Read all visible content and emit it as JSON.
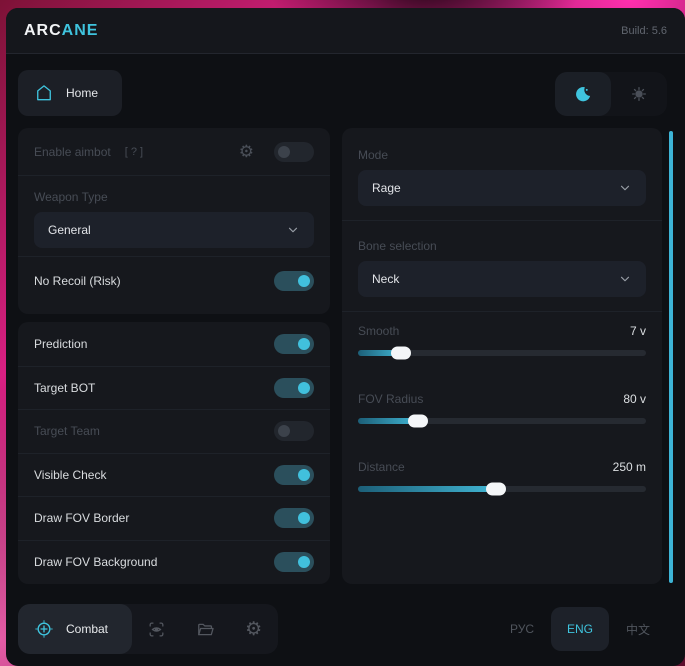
{
  "colors": {
    "accent": "#3fc4de",
    "panel": "#16181d",
    "window": "#0e1014"
  },
  "header": {
    "brand_prefix": "ARC",
    "brand_suffix": "ANE",
    "build": "Build: 5.6"
  },
  "nav": {
    "home_label": "Home"
  },
  "aimbot_panel": {
    "enable_label": "Enable aimbot",
    "enable_hint": "[ ? ]",
    "enable_on": false,
    "weapon_type_label": "Weapon Type",
    "weapon_type_value": "General",
    "no_recoil": {
      "label": "No Recoil (Risk)",
      "on": true
    },
    "toggles": [
      {
        "label": "Prediction",
        "on": true,
        "disabled": false
      },
      {
        "label": "Target BOT",
        "on": true,
        "disabled": false
      },
      {
        "label": "Target Team",
        "on": false,
        "disabled": true
      },
      {
        "label": "Visible Check",
        "on": true,
        "disabled": false
      },
      {
        "label": "Draw FOV Border",
        "on": true,
        "disabled": false
      },
      {
        "label": "Draw FOV Background",
        "on": true,
        "disabled": false
      }
    ]
  },
  "settings_panel": {
    "mode_label": "Mode",
    "mode_value": "Rage",
    "bone_label": "Bone selection",
    "bone_value": "Neck",
    "sliders": [
      {
        "label": "Smooth",
        "value": "7 v",
        "percent": 15
      },
      {
        "label": "FOV Radius",
        "value": "80 v",
        "percent": 21
      },
      {
        "label": "Distance",
        "value": "250 m",
        "percent": 48
      }
    ]
  },
  "footer": {
    "combat_label": "Combat",
    "languages": [
      {
        "label": "РУС",
        "active": false
      },
      {
        "label": "ENG",
        "active": true
      },
      {
        "label": "中文",
        "active": false
      }
    ]
  }
}
